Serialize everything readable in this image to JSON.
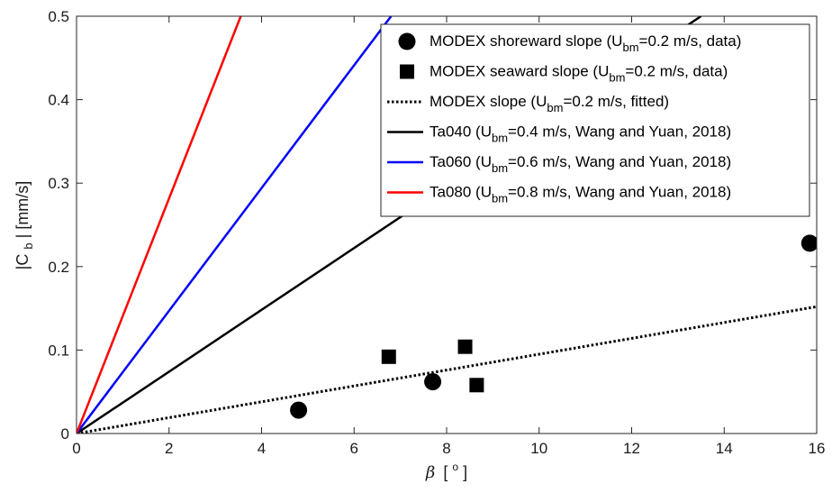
{
  "chart_data": {
    "type": "scatter",
    "title": "",
    "xlabel": "β [°]",
    "xlabel_parts": {
      "symbol": "β",
      "open": "[",
      "unit": "o",
      "close": "]"
    },
    "ylabel": "|C_b| [mm/s]",
    "ylabel_parts": {
      "pre": "|C",
      "sub": "b",
      "post": "| [mm/s]"
    },
    "xlim": [
      0,
      16
    ],
    "ylim": [
      0,
      0.5
    ],
    "xticks": [
      0,
      2,
      4,
      6,
      8,
      10,
      12,
      14,
      16
    ],
    "yticks": [
      0,
      0.1,
      0.2,
      0.3,
      0.4,
      0.5
    ],
    "xtick_labels": [
      "0",
      "2",
      "4",
      "6",
      "8",
      "10",
      "12",
      "14",
      "16"
    ],
    "ytick_labels": [
      "0",
      "0.1",
      "0.2",
      "0.3",
      "0.4",
      "0.5"
    ],
    "grid": false,
    "legend_position": "top-right",
    "series": [
      {
        "name": "MODEX shoreward slope (Ubm=0.2 m/s, data)",
        "legend": {
          "pre": "MODEX shoreward slope (U",
          "sub": "bm",
          "post": "=0.2 m/s, data)"
        },
        "kind": "scatter",
        "marker": "circle",
        "color": "#000000",
        "points": [
          [
            4.8,
            0.028
          ],
          [
            7.7,
            0.062
          ],
          [
            15.85,
            0.228
          ]
        ]
      },
      {
        "name": "MODEX seaward slope (Ubm=0.2 m/s, data)",
        "legend": {
          "pre": "MODEX seaward slope (U",
          "sub": "bm",
          "post": "=0.2 m/s, data)"
        },
        "kind": "scatter",
        "marker": "square",
        "color": "#000000",
        "points": [
          [
            6.75,
            0.092
          ],
          [
            8.4,
            0.104
          ],
          [
            8.65,
            0.058
          ]
        ]
      },
      {
        "name": "MODEX slope (Ubm=0.2 m/s, fitted)",
        "legend": {
          "pre": "MODEX slope (U",
          "sub": "bm",
          "post": "=0.2 m/s, fitted)"
        },
        "kind": "line",
        "style": "dotted",
        "color": "#000000",
        "points": [
          [
            0,
            0
          ],
          [
            16,
            0.152
          ]
        ]
      },
      {
        "name": "Ta040 (Ubm=0.4 m/s, Wang and Yuan, 2018)",
        "legend": {
          "pre": "Ta040 (U",
          "sub": "bm",
          "post": "=0.4 m/s, Wang and Yuan, 2018)"
        },
        "kind": "line",
        "style": "solid",
        "color": "#000000",
        "points": [
          [
            0,
            0
          ],
          [
            13.5,
            0.5
          ]
        ]
      },
      {
        "name": "Ta060 (Ubm=0.6 m/s, Wang and Yuan, 2018)",
        "legend": {
          "pre": "Ta060 (U",
          "sub": "bm",
          "post": "=0.6 m/s, Wang and Yuan, 2018)"
        },
        "kind": "line",
        "style": "solid",
        "color": "#0000ff",
        "points": [
          [
            0,
            0
          ],
          [
            6.8,
            0.5
          ]
        ]
      },
      {
        "name": "Ta080 (Ubm=0.8 m/s, Wang and Yuan, 2018)",
        "legend": {
          "pre": "Ta080 (U",
          "sub": "bm",
          "post": "=0.8 m/s, Wang and Yuan, 2018)"
        },
        "kind": "line",
        "style": "solid",
        "color": "#ff0000",
        "points": [
          [
            0,
            0
          ],
          [
            3.55,
            0.5
          ]
        ]
      }
    ]
  }
}
